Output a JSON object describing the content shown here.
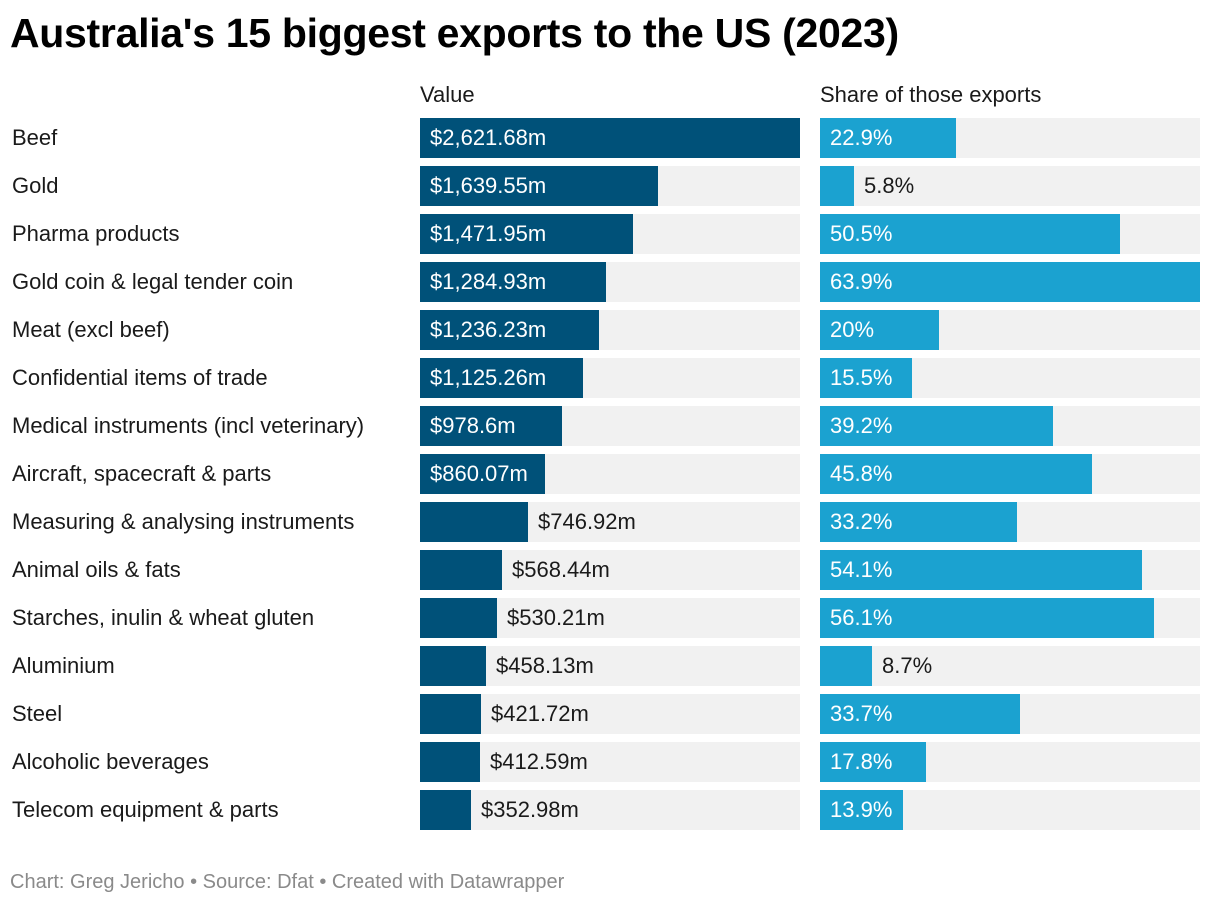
{
  "title": "Australia's 15 biggest exports to the US (2023)",
  "footer": "Chart: Greg Jericho • Source: Dfat • Created with Datawrapper",
  "colors": {
    "value_bar": "#005179",
    "share_bar": "#1ba2d0",
    "track": "#f1f1f1"
  },
  "chart_data": {
    "type": "bar",
    "title": "Australia's 15 biggest exports to the US (2023)",
    "orientation": "horizontal",
    "columns": [
      "Value",
      "Share of those exports"
    ],
    "categories": [
      "Beef",
      "Gold",
      "Pharma products",
      "Gold coin & legal tender coin",
      "Meat (excl beef)",
      "Confidential items of trade",
      "Medical instruments (incl veterinary)",
      "Aircraft, spacecraft & parts",
      "Measuring & analysing instruments",
      "Animal oils & fats",
      "Starches, inulin & wheat gluten",
      "Aluminium",
      "Steel",
      "Alcoholic beverages",
      "Telecom equipment & parts"
    ],
    "series": [
      {
        "name": "Value",
        "unit": "$m",
        "max": 2621.68,
        "values": [
          2621.68,
          1639.55,
          1471.95,
          1284.93,
          1236.23,
          1125.26,
          978.6,
          860.07,
          746.92,
          568.44,
          530.21,
          458.13,
          421.72,
          412.59,
          352.98
        ],
        "labels": [
          "$2,621.68m",
          "$1,639.55m",
          "$1,471.95m",
          "$1,284.93m",
          "$1,236.23m",
          "$1,125.26m",
          "$978.6m",
          "$860.07m",
          "$746.92m",
          "$568.44m",
          "$530.21m",
          "$458.13m",
          "$421.72m",
          "$412.59m",
          "$352.98m"
        ]
      },
      {
        "name": "Share of those exports",
        "unit": "%",
        "max": 63.9,
        "values": [
          22.9,
          5.8,
          50.5,
          63.9,
          20,
          15.5,
          39.2,
          45.8,
          33.2,
          54.1,
          56.1,
          8.7,
          33.7,
          17.8,
          13.9
        ],
        "labels": [
          "22.9%",
          "5.8%",
          "50.5%",
          "63.9%",
          "20%",
          "15.5%",
          "39.2%",
          "45.8%",
          "33.2%",
          "54.1%",
          "56.1%",
          "8.7%",
          "33.7%",
          "17.8%",
          "13.9%"
        ]
      }
    ]
  }
}
